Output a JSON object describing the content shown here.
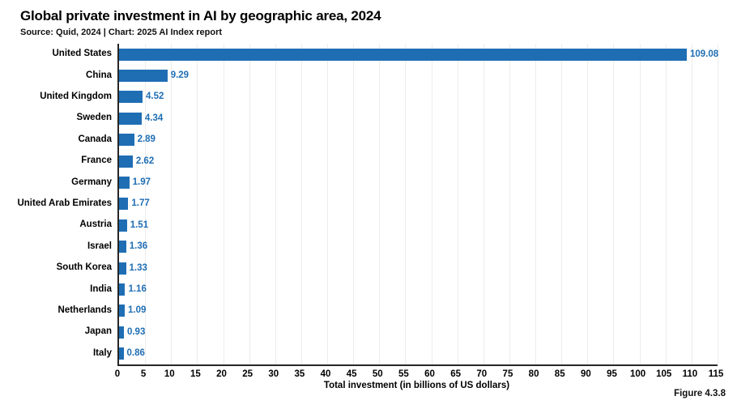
{
  "header": {
    "title": "Global private investment in AI by geographic area, 2024",
    "subtitle": "Source: Quid, 2024 | Chart: 2025 AI Index report"
  },
  "chart_data": {
    "type": "bar",
    "orientation": "horizontal",
    "title": "Global private investment in AI by geographic area, 2024",
    "subtitle": "Source: Quid, 2024 | Chart: 2025 AI Index report",
    "categories": [
      "United States",
      "China",
      "United Kingdom",
      "Sweden",
      "Canada",
      "France",
      "Germany",
      "United Arab Emirates",
      "Austria",
      "Israel",
      "South Korea",
      "India",
      "Netherlands",
      "Japan",
      "Italy"
    ],
    "values": [
      109.08,
      9.29,
      4.52,
      4.34,
      2.89,
      2.62,
      1.97,
      1.77,
      1.51,
      1.36,
      1.33,
      1.16,
      1.09,
      0.93,
      0.86
    ],
    "xlabel": "Total investment (in billions of US dollars)",
    "ylabel": "",
    "xlim": [
      0,
      115
    ],
    "xticks": [
      0,
      5,
      10,
      15,
      20,
      25,
      30,
      35,
      40,
      45,
      50,
      55,
      60,
      65,
      70,
      75,
      80,
      85,
      90,
      95,
      100,
      105,
      110,
      115
    ],
    "grid": "vertical-on",
    "legend": "none",
    "bar_color": "#1f6eb4",
    "value_label_color": "#1f6eb4"
  },
  "footer": {
    "figure_label": "Figure 4.3.8"
  }
}
